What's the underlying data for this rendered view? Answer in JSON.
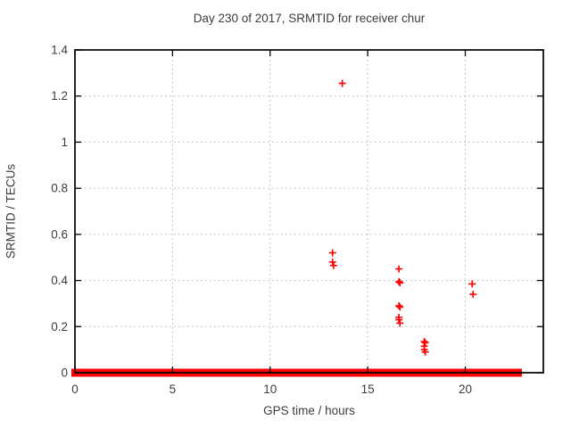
{
  "window": {
    "background": "#ffffff"
  },
  "colors": {
    "marker": "#ff0000",
    "grid": "#b3b3b3",
    "border": "#000000",
    "text": "#3c3c3c"
  },
  "chart_data": {
    "type": "scatter",
    "title": "Day 230 of 2017, SRMTID for receiver chur",
    "xlabel": "GPS time / hours",
    "ylabel": "SRMTID / TECUs",
    "xlim": [
      0,
      24
    ],
    "ylim": [
      0,
      1.4
    ],
    "xticks": [
      {
        "v": 0,
        "label": "0"
      },
      {
        "v": 5,
        "label": "5"
      },
      {
        "v": 10,
        "label": "10"
      },
      {
        "v": 15,
        "label": "15"
      },
      {
        "v": 20,
        "label": "20"
      }
    ],
    "yticks": [
      {
        "v": 0,
        "label": "0"
      },
      {
        "v": 0.2,
        "label": "0.2"
      },
      {
        "v": 0.4,
        "label": "0.4"
      },
      {
        "v": 0.6,
        "label": "0.6"
      },
      {
        "v": 0.8,
        "label": "0.8"
      },
      {
        "v": 1,
        "label": "1"
      },
      {
        "v": 1.2,
        "label": "1.2"
      },
      {
        "v": 1.4,
        "label": "1.4"
      }
    ],
    "grid": true,
    "legend": "none",
    "marker": "plus",
    "series_name": "SRMTID",
    "points": [
      [
        13.2,
        0.52
      ],
      [
        13.2,
        0.48
      ],
      [
        13.25,
        0.465
      ],
      [
        13.7,
        1.255
      ],
      [
        16.6,
        0.45
      ],
      [
        16.6,
        0.395
      ],
      [
        16.65,
        0.39
      ],
      [
        16.6,
        0.29
      ],
      [
        16.65,
        0.285
      ],
      [
        16.6,
        0.24
      ],
      [
        16.6,
        0.23
      ],
      [
        16.65,
        0.215
      ],
      [
        17.9,
        0.135
      ],
      [
        17.95,
        0.13
      ],
      [
        17.9,
        0.115
      ],
      [
        17.9,
        0.1
      ],
      [
        17.95,
        0.09
      ],
      [
        20.35,
        0.385
      ],
      [
        20.4,
        0.34
      ]
    ],
    "baseline_band": {
      "y": 0,
      "x_start": 0,
      "x_end": 22.9,
      "gap": [
        16.58,
        16.7
      ],
      "note": "dense run of + markers at y=0 forming a solid red band"
    }
  }
}
